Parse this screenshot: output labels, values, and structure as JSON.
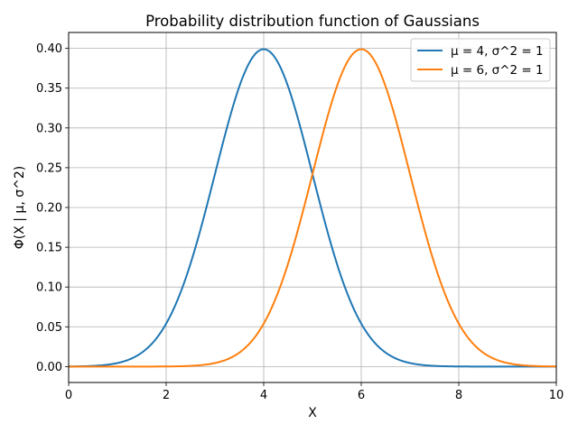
{
  "chart_data": {
    "type": "line",
    "title": "Probability distribution function of Gaussians",
    "xlabel": "X",
    "ylabel": "Φ(X | μ, σ^2)",
    "xlim": [
      0,
      10
    ],
    "ylim": [
      -0.02,
      0.42
    ],
    "xticks": [
      0,
      2,
      4,
      6,
      8,
      10
    ],
    "xtick_labels": [
      "0",
      "2",
      "4",
      "6",
      "8",
      "10"
    ],
    "yticks": [
      0.0,
      0.05,
      0.1,
      0.15,
      0.2,
      0.25,
      0.3,
      0.35,
      0.4
    ],
    "ytick_labels": [
      "0.00",
      "0.05",
      "0.10",
      "0.15",
      "0.20",
      "0.25",
      "0.30",
      "0.35",
      "0.40"
    ],
    "grid": true,
    "legend_position": "top-right",
    "series": [
      {
        "name": "μ = 4, σ^2 = 1",
        "mu": 4,
        "sigma2": 1,
        "color": "#1f77b4"
      },
      {
        "name": "μ = 6, σ^2 = 1",
        "mu": 6,
        "sigma2": 1,
        "color": "#ff7f0e"
      }
    ]
  }
}
